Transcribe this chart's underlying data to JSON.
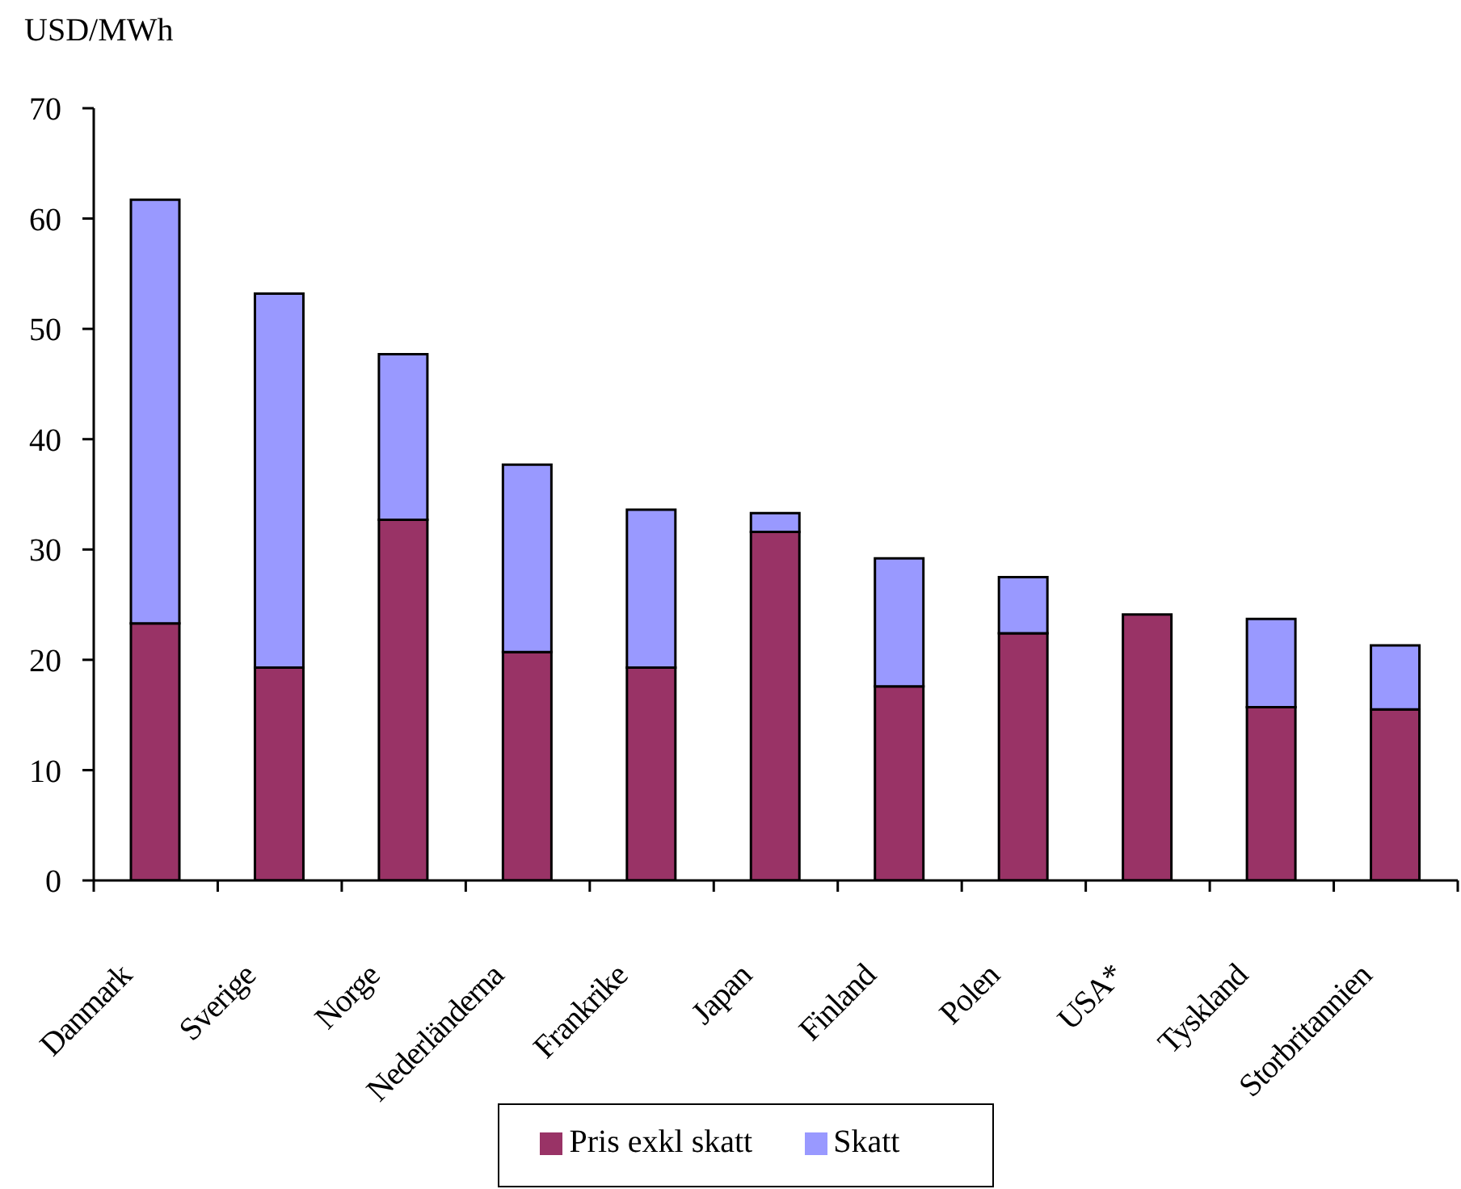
{
  "chart_data": {
    "type": "bar",
    "ylabel": "USD/MWh",
    "categories": [
      "Danmark",
      "Sverige",
      "Norge",
      "Nederländerna",
      "Frankrike",
      "Japan",
      "Finland",
      "Polen",
      "USA*",
      "Tyskland",
      "Storbritannien"
    ],
    "series": [
      {
        "name": "Pris exkl skatt",
        "color": "#993366",
        "values": [
          23.3,
          19.3,
          32.7,
          20.7,
          19.3,
          31.6,
          17.6,
          22.4,
          24.1,
          15.7,
          15.5
        ]
      },
      {
        "name": "Skatt",
        "color": "#9999ff",
        "values": [
          38.4,
          33.9,
          15.0,
          17.0,
          14.3,
          1.7,
          11.6,
          5.1,
          null,
          8.0,
          5.8
        ]
      }
    ],
    "stacked": true,
    "ylim": [
      0,
      70
    ],
    "yticks": [
      0,
      10,
      20,
      30,
      40,
      50,
      60,
      70
    ],
    "legend": "bottom"
  }
}
